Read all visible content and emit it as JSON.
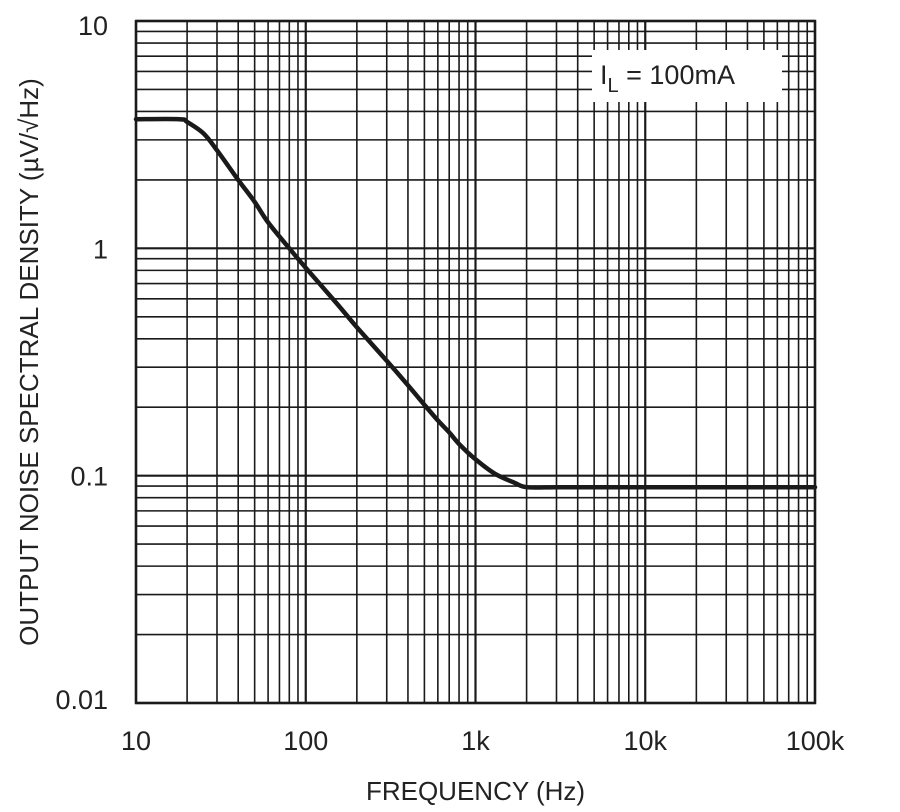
{
  "chart_data": {
    "type": "line",
    "title": "",
    "xlabel": "FREQUENCY (Hz)",
    "ylabel": "OUTPUT NOISE SPECTRAL DENSITY (µV/√Hz)",
    "x_scale": "log",
    "y_scale": "log",
    "xlim": [
      10,
      100000
    ],
    "ylim": [
      0.01,
      10
    ],
    "grid": true,
    "x_ticks": [
      {
        "value": 10,
        "label": "10"
      },
      {
        "value": 100,
        "label": "100"
      },
      {
        "value": 1000,
        "label": "1k"
      },
      {
        "value": 10000,
        "label": "10k"
      },
      {
        "value": 100000,
        "label": "100k"
      }
    ],
    "y_ticks": [
      {
        "value": 0.01,
        "label": "0.01"
      },
      {
        "value": 0.1,
        "label": "0.1"
      },
      {
        "value": 1,
        "label": "1"
      },
      {
        "value": 10,
        "label": "10"
      }
    ],
    "annotation": {
      "symbol": "I",
      "subscript": "L",
      "text": " = 100mA"
    },
    "line_color": "#1a1a1a",
    "series": [
      {
        "x": [
          10,
          18,
          20,
          25,
          30,
          40,
          50,
          60,
          80,
          100,
          150,
          200,
          300,
          400,
          500,
          600,
          700,
          800,
          1000,
          1300,
          1700,
          2000,
          3000,
          5000,
          10000,
          20000,
          50000,
          100000
        ],
        "y": [
          3.7,
          3.7,
          3.6,
          3.2,
          2.7,
          2.0,
          1.6,
          1.3,
          1.0,
          0.82,
          0.58,
          0.45,
          0.32,
          0.25,
          0.205,
          0.175,
          0.155,
          0.138,
          0.118,
          0.102,
          0.093,
          0.089,
          0.089,
          0.089,
          0.089,
          0.089,
          0.089,
          0.089
        ]
      }
    ]
  }
}
